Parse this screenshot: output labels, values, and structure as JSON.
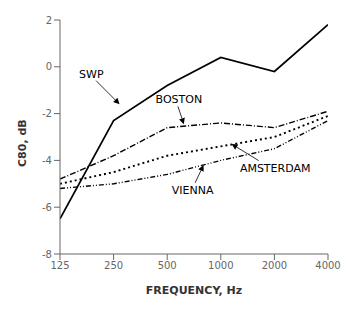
{
  "chart_data": {
    "type": "line",
    "x": [
      125,
      250,
      500,
      1000,
      2000,
      4000
    ],
    "series": [
      {
        "name": "SWP",
        "color": "#000000",
        "line_style": "solid",
        "values": [
          -6.5,
          -2.3,
          -0.8,
          0.4,
          -0.2,
          1.8
        ]
      },
      {
        "name": "BOSTON",
        "color": "#000000",
        "line_style": "dashdot",
        "values": [
          -4.8,
          -3.8,
          -2.6,
          -2.4,
          -2.6,
          -1.9
        ]
      },
      {
        "name": "AMSTERDAM",
        "color": "#000000",
        "line_style": "dotted",
        "values": [
          -5.0,
          -4.5,
          -3.8,
          -3.4,
          -3.0,
          -2.1
        ]
      },
      {
        "name": "VIENNA",
        "color": "#000000",
        "line_style": "dashdotdot",
        "values": [
          -5.2,
          -5.0,
          -4.6,
          -4.0,
          -3.5,
          -2.3
        ]
      }
    ],
    "xlabel": "FREQUENCY, Hz",
    "ylabel": "C80, dB",
    "log": "x",
    "xlim": [
      125,
      4000
    ],
    "xticks": [
      125,
      250,
      500,
      1000,
      2000,
      4000
    ],
    "ylim": [
      -8,
      2
    ],
    "yticks": [
      -8,
      -6,
      -4,
      -2,
      0,
      2
    ],
    "grid": false,
    "annotations": [
      {
        "text": "SWP",
        "xy": [
          270,
          -1.6
        ],
        "xytext": [
          160,
          -0.55
        ]
      },
      {
        "text": "BOSTON",
        "xy": [
          620,
          -2.45
        ],
        "xytext": [
          430,
          -1.65
        ]
      },
      {
        "text": "AMSTERDAM",
        "xy": [
          1150,
          -3.3
        ],
        "xytext": [
          1280,
          -4.05
        ]
      },
      {
        "text": "VIENNA",
        "xy": [
          800,
          -4.2
        ],
        "xytext": [
          530,
          -5.0
        ]
      }
    ]
  }
}
